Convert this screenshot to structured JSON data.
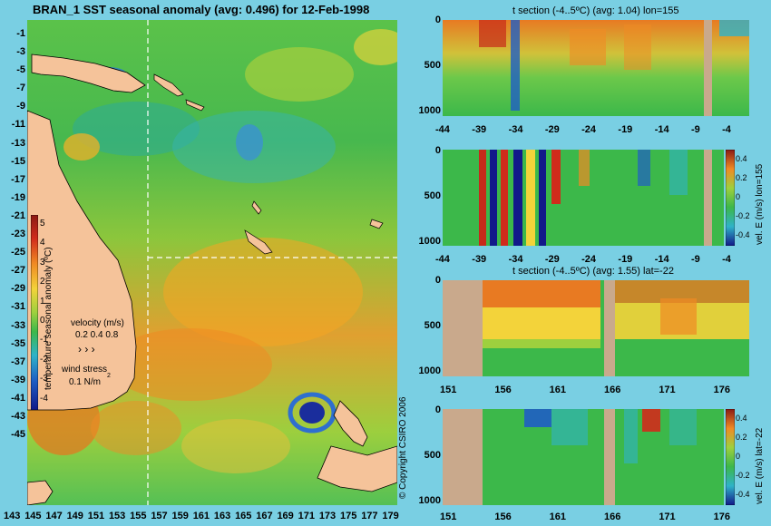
{
  "main_title": "BRAN_1 SST seasonal anomaly (avg: 0.496) for 12-Feb-1998",
  "map": {
    "lat_ticks": [
      "-1",
      "-3",
      "-5",
      "-7",
      "-9",
      "-11",
      "-13",
      "-15",
      "-17",
      "-19",
      "-21",
      "-23",
      "-25",
      "-27",
      "-29",
      "-31",
      "-33",
      "-35",
      "-37",
      "-39",
      "-41",
      "-43",
      "-45"
    ],
    "lon_ticks": [
      "143",
      "145",
      "147",
      "149",
      "151",
      "153",
      "155",
      "157",
      "159",
      "161",
      "163",
      "165",
      "167",
      "169",
      "171",
      "173",
      "175",
      "177",
      "179"
    ],
    "colorbar_label": "temperature seasonal anomaly (ºC)",
    "colorbar_ticks": [
      "5",
      "4",
      "3",
      "2",
      "1",
      "0",
      "-1",
      "-2",
      "-3",
      "-4"
    ],
    "velocity_label": "velocity (m/s)",
    "velocity_scale": "0.2 0.4 0.8",
    "wind_label": "wind stress",
    "wind_scale": "0.1 N/m",
    "copyright": "© Copyright CSIRO 2006",
    "colors": {
      "land": "#f5c39a",
      "ocean_bg": "#3fb84a",
      "section_land": "#c9a98c",
      "guide_line": "#ffffff"
    }
  },
  "panels": [
    {
      "title": "t section (-4..5ºC) (avg: 1.04) lon=155",
      "y_ticks": [
        "0",
        "500",
        "1000"
      ],
      "x_ticks": [
        "-44",
        "-39",
        "-34",
        "-29",
        "-24",
        "-19",
        "-14",
        "-9",
        "-4"
      ]
    },
    {
      "title": "",
      "y_ticks": [
        "0",
        "500",
        "1000"
      ],
      "x_ticks": [
        "-44",
        "-39",
        "-34",
        "-29",
        "-24",
        "-19",
        "-14",
        "-9",
        "-4"
      ],
      "colorbar_ticks": [
        "0.4",
        "0.2",
        "0",
        "-0.2",
        "-0.4"
      ],
      "side_label": "vel. E (m/s) lon=155"
    },
    {
      "title": "t section (-4..5ºC) (avg: 1.55) lat=-22",
      "y_ticks": [
        "0",
        "500",
        "1000"
      ],
      "x_ticks": [
        "151",
        "156",
        "161",
        "166",
        "171",
        "176"
      ]
    },
    {
      "title": "",
      "y_ticks": [
        "0",
        "500",
        "1000"
      ],
      "x_ticks": [
        "151",
        "156",
        "161",
        "166",
        "171",
        "176"
      ],
      "colorbar_ticks": [
        "0.4",
        "0.2",
        "0",
        "-0.2",
        "-0.4"
      ],
      "side_label": "vel. E (m/s) lat=-22"
    }
  ]
}
